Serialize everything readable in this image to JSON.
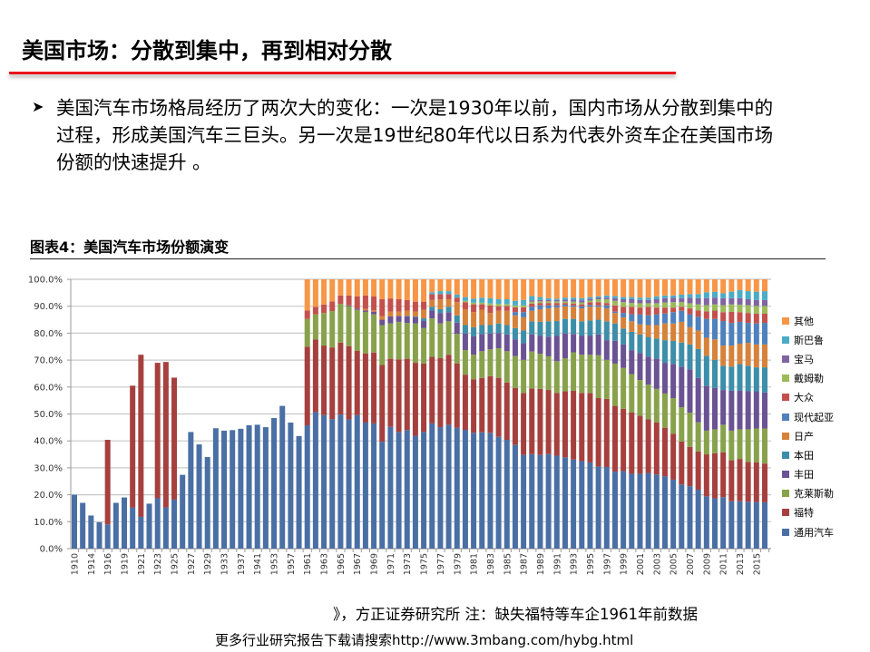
{
  "slide": {
    "title": "美国市场：分散到集中，再到相对分散",
    "bullet_icon": "arrow-bullet-icon",
    "bullet_text": "美国汽车市场格局经历了两次大的变化：一次是1930年以前，国内市场从分散到集中的过程，形成美国汽车三巨头。另一次是19世纪80年代以日系为代表外资车企在美国市场份额的快速提升 。",
    "source_note": "》，方正证券研究所   注：缺失福特等车企1961年前数据",
    "footer": "更多行业研究报告下载请搜索http://www.3mbang.com/hybg.html"
  },
  "accent_color": "#e8141b",
  "chart_data": {
    "type": "bar",
    "stacked": true,
    "title": "图表4：美国汽车市场份额演变",
    "xlabel": "",
    "ylabel": "",
    "ylim": [
      0,
      100
    ],
    "y_ticks": [
      "0.0%",
      "10.0%",
      "20.0%",
      "30.0%",
      "40.0%",
      "50.0%",
      "60.0%",
      "70.0%",
      "80.0%",
      "90.0%",
      "100.0%"
    ],
    "grid": true,
    "legend_position": "right",
    "series": [
      {
        "name": "通用汽车",
        "color": "#4A6FA5"
      },
      {
        "name": "福特",
        "color": "#A6403E"
      },
      {
        "name": "克莱斯勒",
        "color": "#88A24C"
      },
      {
        "name": "丰田",
        "color": "#6B5293"
      },
      {
        "name": "本田",
        "color": "#3D8EA8"
      },
      {
        "name": "日产",
        "color": "#D7823A"
      },
      {
        "name": "现代起亚",
        "color": "#4E81BD"
      },
      {
        "name": "大众",
        "color": "#C4504D"
      },
      {
        "name": "戴姆勒",
        "color": "#9BBB59"
      },
      {
        "name": "宝马",
        "color": "#8064A2"
      },
      {
        "name": "斯巴鲁",
        "color": "#4BACC6"
      },
      {
        "name": "其他",
        "color": "#F79646"
      }
    ],
    "categories": [
      "1910",
      "1912",
      "1914",
      "1915",
      "1916",
      "1918",
      "1919",
      "1920",
      "1921",
      "1922",
      "1923",
      "1924",
      "1925",
      "1926",
      "1927",
      "1928",
      "1929",
      "1931",
      "1933",
      "1935",
      "1937",
      "1939",
      "1941",
      "1950",
      "1953",
      "1955",
      "1957",
      "1959",
      "1961",
      "1962",
      "1963",
      "1964",
      "1965",
      "1966",
      "1967",
      "1968",
      "1969",
      "1970",
      "1971",
      "1972",
      "1973",
      "1974",
      "1975",
      "1976",
      "1977",
      "1978",
      "1979",
      "1980",
      "1981",
      "1982",
      "1983",
      "1984",
      "1985",
      "1986",
      "1987",
      "1988",
      "1989",
      "1990",
      "1991",
      "1992",
      "1993",
      "1994",
      "1995",
      "1996",
      "1997",
      "1998",
      "1999",
      "2000",
      "2001",
      "2002",
      "2003",
      "2004",
      "2005",
      "2006",
      "2007",
      "2008",
      "2009",
      "2010",
      "2011",
      "2012",
      "2013",
      "2014",
      "2015",
      "2016"
    ],
    "values": [
      [
        20,
        0
      ],
      [
        17,
        0
      ],
      [
        12.3,
        0
      ],
      [
        9.8,
        0
      ],
      [
        9,
        31.4
      ],
      [
        17,
        0
      ],
      [
        19,
        0
      ],
      [
        15.3,
        45.2
      ],
      [
        11.8,
        60.2
      ],
      [
        16.7,
        0
      ],
      [
        18.7,
        50.3
      ],
      [
        15.3,
        54
      ],
      [
        18.2,
        45.3
      ],
      [
        27.4,
        0
      ],
      [
        43.3,
        0
      ],
      [
        38.7,
        0
      ],
      [
        34,
        0
      ],
      [
        44.7,
        0
      ],
      [
        43.8,
        0
      ],
      [
        44,
        0
      ],
      [
        44.5,
        0
      ],
      [
        45.8,
        0
      ],
      [
        46,
        0
      ],
      [
        45.1,
        0
      ],
      [
        48.5,
        0
      ],
      [
        53,
        0
      ],
      [
        46.8,
        0
      ],
      [
        41.8,
        0
      ],
      [
        45.8,
        29.2,
        10.3,
        0,
        0,
        0,
        0,
        3.1,
        0,
        0,
        0,
        11.6
      ],
      [
        50.7,
        27.0,
        9.3,
        0,
        0,
        0,
        0,
        2.8,
        0,
        0,
        0,
        10.2
      ],
      [
        49.6,
        25.8,
        12.1,
        0,
        0,
        0,
        0,
        3.1,
        0,
        0,
        0,
        9.4
      ],
      [
        48.1,
        26.6,
        13.5,
        0,
        0,
        0,
        0,
        3.6,
        0,
        0,
        0,
        8.2
      ],
      [
        49.8,
        26.7,
        14.4,
        0,
        0,
        0,
        0,
        3.1,
        0,
        0,
        0,
        6.0
      ],
      [
        48.0,
        27.2,
        14.8,
        0.3,
        0,
        0,
        0,
        3.7,
        0,
        0,
        0,
        6.0
      ],
      [
        49.6,
        23.8,
        15.3,
        0.4,
        0,
        0,
        0,
        4.5,
        0,
        0,
        0,
        6.4
      ],
      [
        46.8,
        25.7,
        15.4,
        0.5,
        0,
        0.6,
        0,
        5.0,
        0,
        0,
        0,
        6.0
      ],
      [
        46.5,
        26.3,
        14.2,
        1.0,
        0,
        0.5,
        0,
        5.1,
        0,
        0,
        0,
        6.4
      ],
      [
        39.7,
        28.5,
        14.8,
        2.0,
        0,
        1.3,
        0,
        6.3,
        0,
        0,
        0,
        7.4
      ],
      [
        45.2,
        25.3,
        13.1,
        2.6,
        0,
        1.8,
        0,
        4.9,
        0,
        0,
        0,
        7.1
      ],
      [
        43.3,
        27.0,
        13.9,
        2.2,
        0,
        1.6,
        0,
        4.6,
        0,
        0,
        0,
        7.4
      ],
      [
        44.0,
        26.5,
        13.3,
        2.4,
        0.2,
        2.0,
        0,
        3.9,
        0,
        0,
        0,
        7.7
      ],
      [
        41.9,
        27.1,
        14.6,
        2.3,
        0.3,
        1.8,
        0,
        3.7,
        0,
        0,
        0,
        8.3
      ],
      [
        43.3,
        25.4,
        13.2,
        2.6,
        1.0,
        3.2,
        0,
        3.0,
        0,
        0,
        0,
        8.3
      ],
      [
        46.5,
        24.7,
        14.3,
        2.9,
        1.4,
        2.5,
        0,
        2.2,
        0,
        0,
        0.7,
        4.8
      ],
      [
        45.1,
        25.6,
        12.9,
        3.9,
        1.4,
        3.6,
        0,
        2.0,
        0,
        0,
        1.1,
        4.4
      ],
      [
        46.0,
        26.0,
        12.4,
        3.4,
        2.0,
        2.8,
        0,
        1.9,
        0,
        0,
        1.1,
        4.4
      ],
      [
        44.9,
        23.8,
        11.0,
        4.2,
        2.7,
        4.9,
        0,
        1.7,
        0,
        0,
        1.1,
        5.7
      ],
      [
        44.1,
        20.5,
        9.1,
        6.2,
        3.1,
        5.9,
        0,
        2.6,
        0.5,
        0,
        1.4,
        6.6
      ],
      [
        43.0,
        19.9,
        9.1,
        6.8,
        3.4,
        5.6,
        0,
        2.9,
        0.6,
        0,
        1.5,
        7.2
      ],
      [
        43.2,
        20.2,
        9.9,
        6.4,
        3.3,
        5.7,
        0,
        2.0,
        0.6,
        0,
        1.9,
        6.8
      ],
      [
        43.0,
        21.0,
        10.0,
        5.9,
        3.1,
        4.5,
        0,
        2.8,
        0.7,
        0,
        2.0,
        7.0
      ],
      [
        41.5,
        21.9,
        11.0,
        5.6,
        3.6,
        4.7,
        0,
        1.7,
        0.9,
        0,
        1.7,
        7.4
      ],
      [
        40.4,
        21.3,
        11.6,
        6.2,
        3.5,
        5.3,
        0,
        1.8,
        0.7,
        0,
        1.8,
        7.4
      ],
      [
        38.5,
        21.2,
        11.8,
        6.2,
        4.2,
        4.7,
        1.2,
        1.8,
        0.7,
        0,
        1.7,
        8.0
      ],
      [
        34.8,
        23.0,
        12.3,
        6.2,
        4.7,
        4.9,
        1.9,
        1.8,
        0.7,
        0,
        2.0,
        7.7
      ],
      [
        35.1,
        24.4,
        13.7,
        6.3,
        4.9,
        3.9,
        1.5,
        1.2,
        0.7,
        0.5,
        1.6,
        6.2
      ],
      [
        34.8,
        24.5,
        13.1,
        6.7,
        5.1,
        4.7,
        1.4,
        0.9,
        0.6,
        0.5,
        1.1,
        6.6
      ],
      [
        35.1,
        23.8,
        12.5,
        7.3,
        5.7,
        4.8,
        1.1,
        0.9,
        0.6,
        0.5,
        0.7,
        7.0
      ],
      [
        34.5,
        23.3,
        11.8,
        9.5,
        5.4,
        5.0,
        0.8,
        0.9,
        0.6,
        0.5,
        0.5,
        7.2
      ],
      [
        33.9,
        24.5,
        12.3,
        9.2,
        5.4,
        4.7,
        0.6,
        0.6,
        0.6,
        0.6,
        0.8,
        6.8
      ],
      [
        33.1,
        25.5,
        14.3,
        6.8,
        5.6,
        4.5,
        0.5,
        0.7,
        0.7,
        0.7,
        0.8,
        6.8
      ],
      [
        32.5,
        25.3,
        14.2,
        7.1,
        5.3,
        4.8,
        0.8,
        0.7,
        0.7,
        0.8,
        0.8,
        7.0
      ],
      [
        32.0,
        25.8,
        14.2,
        7.1,
        5.6,
        5.1,
        0.7,
        1.0,
        0.6,
        0.6,
        0.7,
        6.6
      ],
      [
        30.5,
        25.4,
        15.9,
        7.7,
        5.5,
        4.8,
        0.5,
        1.2,
        1.1,
        0.5,
        0.6,
        6.3
      ],
      [
        30.3,
        25.3,
        14.5,
        7.3,
        7.0,
        4.8,
        1.1,
        0.9,
        1.4,
        0.6,
        0.8,
        6.0
      ],
      [
        28.6,
        24.4,
        15.7,
        8.5,
        6.4,
        3.9,
        0.5,
        2.3,
        1.7,
        1.0,
        0.8,
        6.2
      ],
      [
        28.8,
        23.1,
        15.2,
        8.7,
        5.9,
        4.2,
        1.6,
        2.3,
        1.7,
        1.1,
        0.8,
        6.6
      ],
      [
        27.8,
        22.7,
        14.3,
        8.9,
        6.8,
        3.9,
        2.6,
        2.8,
        1.4,
        1.4,
        0.8,
        6.6
      ],
      [
        27.8,
        21.6,
        13.2,
        10.0,
        6.9,
        3.8,
        3.7,
        2.5,
        1.6,
        1.2,
        0.9,
        6.8
      ],
      [
        28.1,
        19.9,
        12.9,
        10.4,
        7.3,
        4.4,
        3.6,
        3.2,
        1.3,
        1.2,
        0.9,
        6.8
      ],
      [
        27.5,
        19.3,
        12.5,
        11.2,
        7.5,
        5.0,
        4.0,
        2.5,
        1.6,
        1.5,
        1.1,
        6.3
      ],
      [
        26.9,
        18.0,
        12.7,
        11.4,
        8.4,
        6.2,
        3.7,
        2.2,
        1.9,
        1.6,
        1.0,
        6.0
      ],
      [
        25.6,
        17.0,
        13.3,
        12.7,
        8.5,
        6.5,
        4.2,
        1.7,
        2.0,
        1.7,
        0.8,
        6.0
      ],
      [
        23.8,
        16.0,
        12.7,
        15.1,
        8.9,
        7.7,
        4.1,
        1.5,
        1.7,
        1.5,
        1.3,
        5.7
      ],
      [
        23.2,
        14.6,
        12.7,
        16.1,
        9.2,
        6.4,
        4.8,
        2.2,
        1.9,
        2.1,
        1.3,
        5.5
      ],
      [
        21.9,
        14.2,
        10.8,
        16.5,
        10.7,
        6.9,
        5.1,
        2.3,
        2.3,
        2.3,
        1.5,
        5.5
      ],
      [
        19.4,
        15.6,
        8.8,
        16.6,
        11.2,
        6.7,
        7.0,
        2.8,
        2.3,
        2.6,
        2.2,
        4.8
      ],
      [
        18.7,
        16.7,
        8.9,
        15.4,
        10.4,
        7.6,
        7.6,
        3.1,
        2.3,
        2.5,
        2.2,
        4.6
      ],
      [
        19.1,
        16.6,
        10.3,
        12.9,
        9.0,
        7.5,
        9.1,
        3.3,
        2.6,
        2.6,
        1.8,
        5.2
      ],
      [
        17.6,
        15.2,
        11.0,
        14.8,
        9.0,
        7.8,
        8.4,
        4.1,
        2.8,
        2.3,
        2.4,
        4.6
      ],
      [
        17.6,
        15.7,
        11.0,
        14.3,
        9.9,
        7.6,
        8.1,
        3.6,
        2.8,
        2.4,
        3.0,
        4.0
      ],
      [
        17.4,
        14.8,
        12.1,
        14.1,
        9.5,
        8.5,
        7.4,
        3.7,
        2.9,
        2.2,
        3.0,
        4.4
      ],
      [
        17.3,
        14.7,
        12.6,
        13.8,
        8.9,
        8.5,
        7.8,
        3.6,
        2.9,
        2.2,
        3.1,
        4.6
      ],
      [
        17.2,
        14.4,
        13.0,
        13.4,
        9.3,
        8.5,
        8.0,
        3.4,
        2.9,
        2.2,
        3.3,
        4.4
      ]
    ]
  }
}
